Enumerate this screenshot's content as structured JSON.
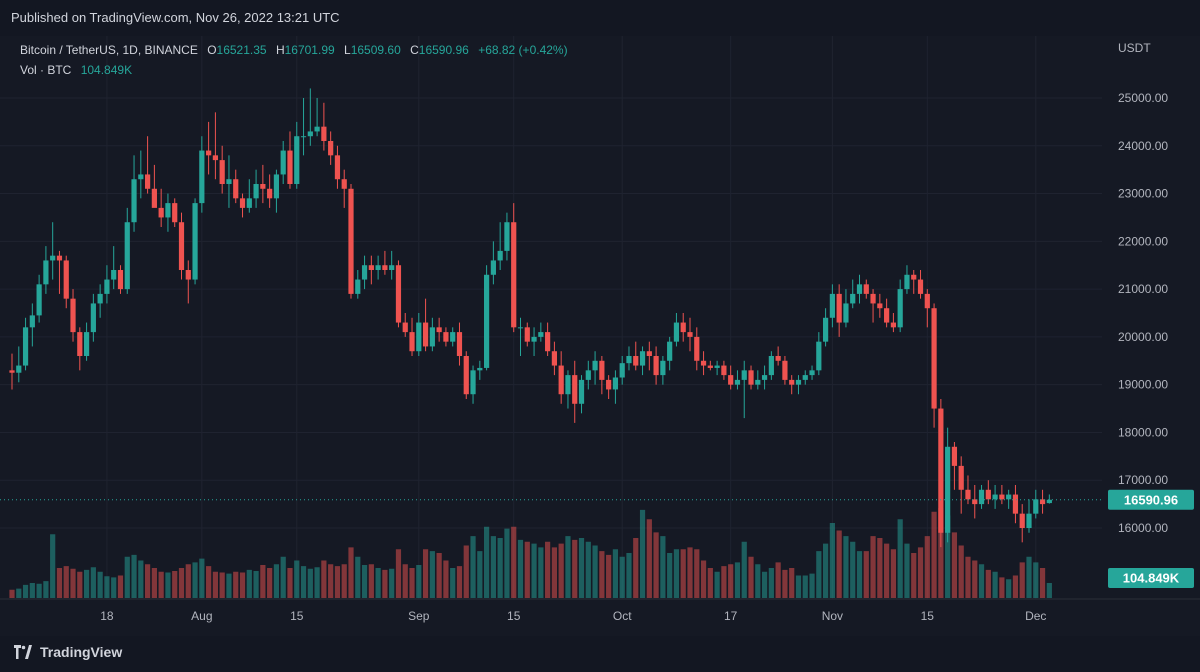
{
  "header": {
    "published": "Published on TradingView.com, Nov 26, 2022 13:21 UTC"
  },
  "legend": {
    "symbol": "Bitcoin / TetherUS, 1D, BINANCE",
    "o_label": "O",
    "o_value": "16521.35",
    "h_label": "H",
    "h_value": "16701.99",
    "l_label": "L",
    "l_value": "16509.60",
    "c_label": "C",
    "c_value": "16590.96",
    "change": "+68.82 (+0.42%)",
    "vol_label": "Vol · BTC",
    "vol_value": "104.849K"
  },
  "footer": {
    "brand": "TradingView",
    "logo_icon": "tradingview-logo-icon"
  },
  "colors": {
    "up": "#26a69a",
    "down": "#ef5350",
    "bg": "#151924",
    "grid": "#1f2330",
    "text": "#b2b5be"
  },
  "chart_data": {
    "type": "candlestick",
    "axis_unit": "USDT",
    "ylim": [
      15000,
      25500
    ],
    "y_ticks": [
      "25000.00",
      "24000.00",
      "23000.00",
      "22000.00",
      "21000.00",
      "20000.00",
      "19000.00",
      "18000.00",
      "17000.00",
      "16000.00"
    ],
    "x_ticks": [
      {
        "label": "18",
        "index": 14
      },
      {
        "label": "Aug",
        "index": 28
      },
      {
        "label": "15",
        "index": 42
      },
      {
        "label": "Sep",
        "index": 60
      },
      {
        "label": "15",
        "index": 74
      },
      {
        "label": "Oct",
        "index": 90
      },
      {
        "label": "17",
        "index": 106
      },
      {
        "label": "Nov",
        "index": 121
      },
      {
        "label": "15",
        "index": 135
      },
      {
        "label": "Dec",
        "index": 151
      }
    ],
    "last_price_label": "16590.96",
    "last_price": 16590.96,
    "last_volume_label": "104.849K",
    "volume_max": 240,
    "grid": true,
    "series": [
      {
        "o": 19300,
        "h": 19650,
        "l": 18900,
        "c": 19250,
        "v": 22
      },
      {
        "o": 19250,
        "h": 19800,
        "l": 19050,
        "c": 19400,
        "v": 25
      },
      {
        "o": 19400,
        "h": 20400,
        "l": 19300,
        "c": 20200,
        "v": 35
      },
      {
        "o": 20200,
        "h": 20700,
        "l": 19800,
        "c": 20450,
        "v": 40
      },
      {
        "o": 20450,
        "h": 21300,
        "l": 20300,
        "c": 21100,
        "v": 38
      },
      {
        "o": 21100,
        "h": 21900,
        "l": 20900,
        "c": 21600,
        "v": 45
      },
      {
        "o": 21600,
        "h": 22400,
        "l": 21200,
        "c": 21700,
        "v": 170
      },
      {
        "o": 21700,
        "h": 21800,
        "l": 20900,
        "c": 21600,
        "v": 80
      },
      {
        "o": 21600,
        "h": 21700,
        "l": 20600,
        "c": 20800,
        "v": 85
      },
      {
        "o": 20800,
        "h": 21000,
        "l": 19900,
        "c": 20100,
        "v": 78
      },
      {
        "o": 20100,
        "h": 20200,
        "l": 19300,
        "c": 19600,
        "v": 70
      },
      {
        "o": 19600,
        "h": 20300,
        "l": 19500,
        "c": 20100,
        "v": 75
      },
      {
        "o": 20100,
        "h": 20900,
        "l": 19900,
        "c": 20700,
        "v": 82
      },
      {
        "o": 20700,
        "h": 21100,
        "l": 20400,
        "c": 20900,
        "v": 70
      },
      {
        "o": 20900,
        "h": 21500,
        "l": 20700,
        "c": 21200,
        "v": 58
      },
      {
        "o": 21200,
        "h": 21900,
        "l": 21000,
        "c": 21400,
        "v": 55
      },
      {
        "o": 21400,
        "h": 21500,
        "l": 20900,
        "c": 21000,
        "v": 60
      },
      {
        "o": 21000,
        "h": 22700,
        "l": 20900,
        "c": 22400,
        "v": 110
      },
      {
        "o": 22400,
        "h": 23800,
        "l": 22200,
        "c": 23300,
        "v": 115
      },
      {
        "o": 23300,
        "h": 23900,
        "l": 22900,
        "c": 23400,
        "v": 100
      },
      {
        "o": 23400,
        "h": 24200,
        "l": 23000,
        "c": 23100,
        "v": 90
      },
      {
        "o": 23100,
        "h": 23600,
        "l": 22800,
        "c": 22700,
        "v": 80
      },
      {
        "o": 22700,
        "h": 23100,
        "l": 22300,
        "c": 22500,
        "v": 70
      },
      {
        "o": 22500,
        "h": 23000,
        "l": 22200,
        "c": 22800,
        "v": 68
      },
      {
        "o": 22800,
        "h": 22900,
        "l": 22300,
        "c": 22400,
        "v": 72
      },
      {
        "o": 22400,
        "h": 22600,
        "l": 21200,
        "c": 21400,
        "v": 80
      },
      {
        "o": 21400,
        "h": 21600,
        "l": 20700,
        "c": 21200,
        "v": 90
      },
      {
        "o": 21200,
        "h": 22900,
        "l": 21100,
        "c": 22800,
        "v": 95
      },
      {
        "o": 22800,
        "h": 24200,
        "l": 22600,
        "c": 23900,
        "v": 105
      },
      {
        "o": 23900,
        "h": 24500,
        "l": 23400,
        "c": 23800,
        "v": 85
      },
      {
        "o": 23800,
        "h": 24700,
        "l": 23300,
        "c": 23700,
        "v": 70
      },
      {
        "o": 23700,
        "h": 24000,
        "l": 23000,
        "c": 23200,
        "v": 68
      },
      {
        "o": 23200,
        "h": 23800,
        "l": 22700,
        "c": 23300,
        "v": 65
      },
      {
        "o": 23300,
        "h": 23500,
        "l": 22800,
        "c": 22900,
        "v": 70
      },
      {
        "o": 22900,
        "h": 23000,
        "l": 22500,
        "c": 22700,
        "v": 68
      },
      {
        "o": 22700,
        "h": 23300,
        "l": 22600,
        "c": 22900,
        "v": 75
      },
      {
        "o": 22900,
        "h": 23500,
        "l": 22700,
        "c": 23200,
        "v": 72
      },
      {
        "o": 23200,
        "h": 23600,
        "l": 22800,
        "c": 23100,
        "v": 88
      },
      {
        "o": 23100,
        "h": 23400,
        "l": 22700,
        "c": 22900,
        "v": 80
      },
      {
        "o": 22900,
        "h": 23500,
        "l": 22600,
        "c": 23400,
        "v": 90
      },
      {
        "o": 23400,
        "h": 24100,
        "l": 23200,
        "c": 23900,
        "v": 110
      },
      {
        "o": 23900,
        "h": 24300,
        "l": 23100,
        "c": 23200,
        "v": 80
      },
      {
        "o": 23200,
        "h": 24500,
        "l": 23100,
        "c": 24200,
        "v": 100
      },
      {
        "o": 24200,
        "h": 25000,
        "l": 23800,
        "c": 24200,
        "v": 85
      },
      {
        "o": 24200,
        "h": 25200,
        "l": 24000,
        "c": 24300,
        "v": 78
      },
      {
        "o": 24300,
        "h": 25000,
        "l": 24200,
        "c": 24400,
        "v": 82
      },
      {
        "o": 24400,
        "h": 24900,
        "l": 23900,
        "c": 24100,
        "v": 100
      },
      {
        "o": 24100,
        "h": 24300,
        "l": 23600,
        "c": 23800,
        "v": 90
      },
      {
        "o": 23800,
        "h": 24000,
        "l": 23100,
        "c": 23300,
        "v": 85
      },
      {
        "o": 23300,
        "h": 23500,
        "l": 22700,
        "c": 23100,
        "v": 90
      },
      {
        "o": 23100,
        "h": 23200,
        "l": 20800,
        "c": 20900,
        "v": 135
      },
      {
        "o": 20900,
        "h": 21400,
        "l": 20800,
        "c": 21200,
        "v": 110
      },
      {
        "o": 21200,
        "h": 21700,
        "l": 21000,
        "c": 21500,
        "v": 88
      },
      {
        "o": 21500,
        "h": 21700,
        "l": 21100,
        "c": 21400,
        "v": 90
      },
      {
        "o": 21400,
        "h": 21700,
        "l": 21200,
        "c": 21500,
        "v": 80
      },
      {
        "o": 21500,
        "h": 21800,
        "l": 21300,
        "c": 21400,
        "v": 75
      },
      {
        "o": 21400,
        "h": 21800,
        "l": 21200,
        "c": 21500,
        "v": 78
      },
      {
        "o": 21500,
        "h": 21600,
        "l": 20200,
        "c": 20300,
        "v": 130
      },
      {
        "o": 20300,
        "h": 20500,
        "l": 20000,
        "c": 20100,
        "v": 90
      },
      {
        "o": 20100,
        "h": 20400,
        "l": 19600,
        "c": 19700,
        "v": 80
      },
      {
        "o": 19700,
        "h": 20500,
        "l": 19600,
        "c": 20300,
        "v": 88
      },
      {
        "o": 20300,
        "h": 20800,
        "l": 19700,
        "c": 19800,
        "v": 130
      },
      {
        "o": 19800,
        "h": 20400,
        "l": 19700,
        "c": 20200,
        "v": 125
      },
      {
        "o": 20200,
        "h": 20400,
        "l": 19900,
        "c": 20100,
        "v": 120
      },
      {
        "o": 20100,
        "h": 20200,
        "l": 19800,
        "c": 19900,
        "v": 100
      },
      {
        "o": 19900,
        "h": 20200,
        "l": 19800,
        "c": 20100,
        "v": 80
      },
      {
        "o": 20100,
        "h": 20300,
        "l": 19400,
        "c": 19600,
        "v": 85
      },
      {
        "o": 19600,
        "h": 19700,
        "l": 18700,
        "c": 18800,
        "v": 140
      },
      {
        "o": 18800,
        "h": 19400,
        "l": 18600,
        "c": 19300,
        "v": 165
      },
      {
        "o": 19300,
        "h": 19500,
        "l": 19100,
        "c": 19350,
        "v": 125
      },
      {
        "o": 19350,
        "h": 21500,
        "l": 19300,
        "c": 21300,
        "v": 190
      },
      {
        "o": 21300,
        "h": 22000,
        "l": 21100,
        "c": 21600,
        "v": 165
      },
      {
        "o": 21600,
        "h": 22400,
        "l": 21400,
        "c": 21800,
        "v": 160
      },
      {
        "o": 21800,
        "h": 22600,
        "l": 21600,
        "c": 22400,
        "v": 185
      },
      {
        "o": 22400,
        "h": 22800,
        "l": 20100,
        "c": 20200,
        "v": 190
      },
      {
        "o": 20200,
        "h": 20400,
        "l": 19600,
        "c": 20200,
        "v": 155
      },
      {
        "o": 20200,
        "h": 20300,
        "l": 19800,
        "c": 19900,
        "v": 150
      },
      {
        "o": 19900,
        "h": 20200,
        "l": 19600,
        "c": 20000,
        "v": 145
      },
      {
        "o": 20000,
        "h": 20300,
        "l": 19900,
        "c": 20100,
        "v": 135
      },
      {
        "o": 20100,
        "h": 20300,
        "l": 19600,
        "c": 19700,
        "v": 150
      },
      {
        "o": 19700,
        "h": 19900,
        "l": 19200,
        "c": 19400,
        "v": 135
      },
      {
        "o": 19400,
        "h": 19700,
        "l": 18600,
        "c": 18800,
        "v": 145
      },
      {
        "o": 18800,
        "h": 19300,
        "l": 18500,
        "c": 19200,
        "v": 165
      },
      {
        "o": 19200,
        "h": 19500,
        "l": 18200,
        "c": 18600,
        "v": 155
      },
      {
        "o": 18600,
        "h": 19200,
        "l": 18400,
        "c": 19100,
        "v": 160
      },
      {
        "o": 19100,
        "h": 19500,
        "l": 18900,
        "c": 19300,
        "v": 150
      },
      {
        "o": 19300,
        "h": 19700,
        "l": 19000,
        "c": 19500,
        "v": 140
      },
      {
        "o": 19500,
        "h": 19600,
        "l": 18800,
        "c": 19100,
        "v": 125
      },
      {
        "o": 19100,
        "h": 19200,
        "l": 18700,
        "c": 18900,
        "v": 115
      },
      {
        "o": 18900,
        "h": 19300,
        "l": 18600,
        "c": 19150,
        "v": 130
      },
      {
        "o": 19150,
        "h": 19600,
        "l": 19000,
        "c": 19450,
        "v": 110
      },
      {
        "o": 19450,
        "h": 19800,
        "l": 19300,
        "c": 19600,
        "v": 120
      },
      {
        "o": 19600,
        "h": 19900,
        "l": 19300,
        "c": 19400,
        "v": 160
      },
      {
        "o": 19400,
        "h": 19800,
        "l": 19200,
        "c": 19700,
        "v": 235
      },
      {
        "o": 19700,
        "h": 19900,
        "l": 19300,
        "c": 19600,
        "v": 210
      },
      {
        "o": 19600,
        "h": 19800,
        "l": 19000,
        "c": 19200,
        "v": 175
      },
      {
        "o": 19200,
        "h": 19600,
        "l": 19000,
        "c": 19500,
        "v": 165
      },
      {
        "o": 19500,
        "h": 20000,
        "l": 19300,
        "c": 19900,
        "v": 120
      },
      {
        "o": 19900,
        "h": 20500,
        "l": 19800,
        "c": 20300,
        "v": 130
      },
      {
        "o": 20300,
        "h": 20500,
        "l": 19900,
        "c": 20100,
        "v": 130
      },
      {
        "o": 20100,
        "h": 20400,
        "l": 19700,
        "c": 20000,
        "v": 135
      },
      {
        "o": 20000,
        "h": 20200,
        "l": 19300,
        "c": 19500,
        "v": 130
      },
      {
        "o": 19500,
        "h": 19700,
        "l": 19200,
        "c": 19400,
        "v": 100
      },
      {
        "o": 19400,
        "h": 19500,
        "l": 19300,
        "c": 19350,
        "v": 80
      },
      {
        "o": 19350,
        "h": 19500,
        "l": 19200,
        "c": 19400,
        "v": 70
      },
      {
        "o": 19400,
        "h": 19500,
        "l": 19100,
        "c": 19200,
        "v": 85
      },
      {
        "o": 19200,
        "h": 19400,
        "l": 18900,
        "c": 19000,
        "v": 90
      },
      {
        "o": 19000,
        "h": 19300,
        "l": 18900,
        "c": 19100,
        "v": 95
      },
      {
        "o": 19100,
        "h": 19500,
        "l": 18300,
        "c": 19300,
        "v": 150
      },
      {
        "o": 19300,
        "h": 19400,
        "l": 18900,
        "c": 19000,
        "v": 110
      },
      {
        "o": 19000,
        "h": 19300,
        "l": 18900,
        "c": 19100,
        "v": 90
      },
      {
        "o": 19100,
        "h": 19400,
        "l": 18900,
        "c": 19200,
        "v": 70
      },
      {
        "o": 19200,
        "h": 19700,
        "l": 19100,
        "c": 19600,
        "v": 80
      },
      {
        "o": 19600,
        "h": 19800,
        "l": 19400,
        "c": 19500,
        "v": 95
      },
      {
        "o": 19500,
        "h": 19600,
        "l": 19000,
        "c": 19100,
        "v": 75
      },
      {
        "o": 19100,
        "h": 19200,
        "l": 18800,
        "c": 19000,
        "v": 80
      },
      {
        "o": 19000,
        "h": 19200,
        "l": 18800,
        "c": 19100,
        "v": 60
      },
      {
        "o": 19100,
        "h": 19300,
        "l": 19000,
        "c": 19200,
        "v": 60
      },
      {
        "o": 19200,
        "h": 19400,
        "l": 19100,
        "c": 19300,
        "v": 65
      },
      {
        "o": 19300,
        "h": 20100,
        "l": 19200,
        "c": 19900,
        "v": 125
      },
      {
        "o": 19900,
        "h": 20600,
        "l": 19800,
        "c": 20400,
        "v": 145
      },
      {
        "o": 20400,
        "h": 21100,
        "l": 20200,
        "c": 20900,
        "v": 200
      },
      {
        "o": 20900,
        "h": 21100,
        "l": 20000,
        "c": 20300,
        "v": 180
      },
      {
        "o": 20300,
        "h": 21000,
        "l": 20200,
        "c": 20700,
        "v": 165
      },
      {
        "o": 20700,
        "h": 21200,
        "l": 20600,
        "c": 20900,
        "v": 150
      },
      {
        "o": 20900,
        "h": 21300,
        "l": 20700,
        "c": 21100,
        "v": 125
      },
      {
        "o": 21100,
        "h": 21200,
        "l": 20800,
        "c": 20900,
        "v": 125
      },
      {
        "o": 20900,
        "h": 21000,
        "l": 20300,
        "c": 20700,
        "v": 165
      },
      {
        "o": 20700,
        "h": 20900,
        "l": 20400,
        "c": 20600,
        "v": 160
      },
      {
        "o": 20600,
        "h": 20800,
        "l": 20200,
        "c": 20300,
        "v": 145
      },
      {
        "o": 20300,
        "h": 20500,
        "l": 20100,
        "c": 20200,
        "v": 130
      },
      {
        "o": 20200,
        "h": 21200,
        "l": 20100,
        "c": 21000,
        "v": 210
      },
      {
        "o": 21000,
        "h": 21500,
        "l": 20900,
        "c": 21300,
        "v": 145
      },
      {
        "o": 21300,
        "h": 21400,
        "l": 20900,
        "c": 21200,
        "v": 120
      },
      {
        "o": 21200,
        "h": 21400,
        "l": 20800,
        "c": 20900,
        "v": 135
      },
      {
        "o": 20900,
        "h": 21000,
        "l": 20200,
        "c": 20600,
        "v": 165
      },
      {
        "o": 20600,
        "h": 20700,
        "l": 18100,
        "c": 18500,
        "v": 230
      },
      {
        "o": 18500,
        "h": 18700,
        "l": 15600,
        "c": 15900,
        "v": 240
      },
      {
        "o": 15900,
        "h": 18100,
        "l": 15700,
        "c": 17700,
        "v": 220
      },
      {
        "o": 17700,
        "h": 17800,
        "l": 16800,
        "c": 17300,
        "v": 175
      },
      {
        "o": 17300,
        "h": 17500,
        "l": 16300,
        "c": 16800,
        "v": 140
      },
      {
        "o": 16800,
        "h": 17100,
        "l": 16500,
        "c": 16600,
        "v": 110
      },
      {
        "o": 16600,
        "h": 16900,
        "l": 16200,
        "c": 16500,
        "v": 100
      },
      {
        "o": 16500,
        "h": 16900,
        "l": 16400,
        "c": 16800,
        "v": 90
      },
      {
        "o": 16800,
        "h": 17000,
        "l": 16500,
        "c": 16600,
        "v": 75
      },
      {
        "o": 16600,
        "h": 16900,
        "l": 16400,
        "c": 16700,
        "v": 70
      },
      {
        "o": 16700,
        "h": 16900,
        "l": 16500,
        "c": 16600,
        "v": 55
      },
      {
        "o": 16600,
        "h": 16800,
        "l": 16400,
        "c": 16700,
        "v": 50
      },
      {
        "o": 16700,
        "h": 16900,
        "l": 16100,
        "c": 16300,
        "v": 60
      },
      {
        "o": 16300,
        "h": 16500,
        "l": 15700,
        "c": 16000,
        "v": 95
      },
      {
        "o": 16000,
        "h": 16600,
        "l": 15900,
        "c": 16300,
        "v": 110
      },
      {
        "o": 16300,
        "h": 16800,
        "l": 16200,
        "c": 16600,
        "v": 95
      },
      {
        "o": 16600,
        "h": 16800,
        "l": 16300,
        "c": 16500,
        "v": 80
      },
      {
        "o": 16521.35,
        "h": 16701.99,
        "l": 16509.6,
        "c": 16590.96,
        "v": 40
      }
    ]
  }
}
